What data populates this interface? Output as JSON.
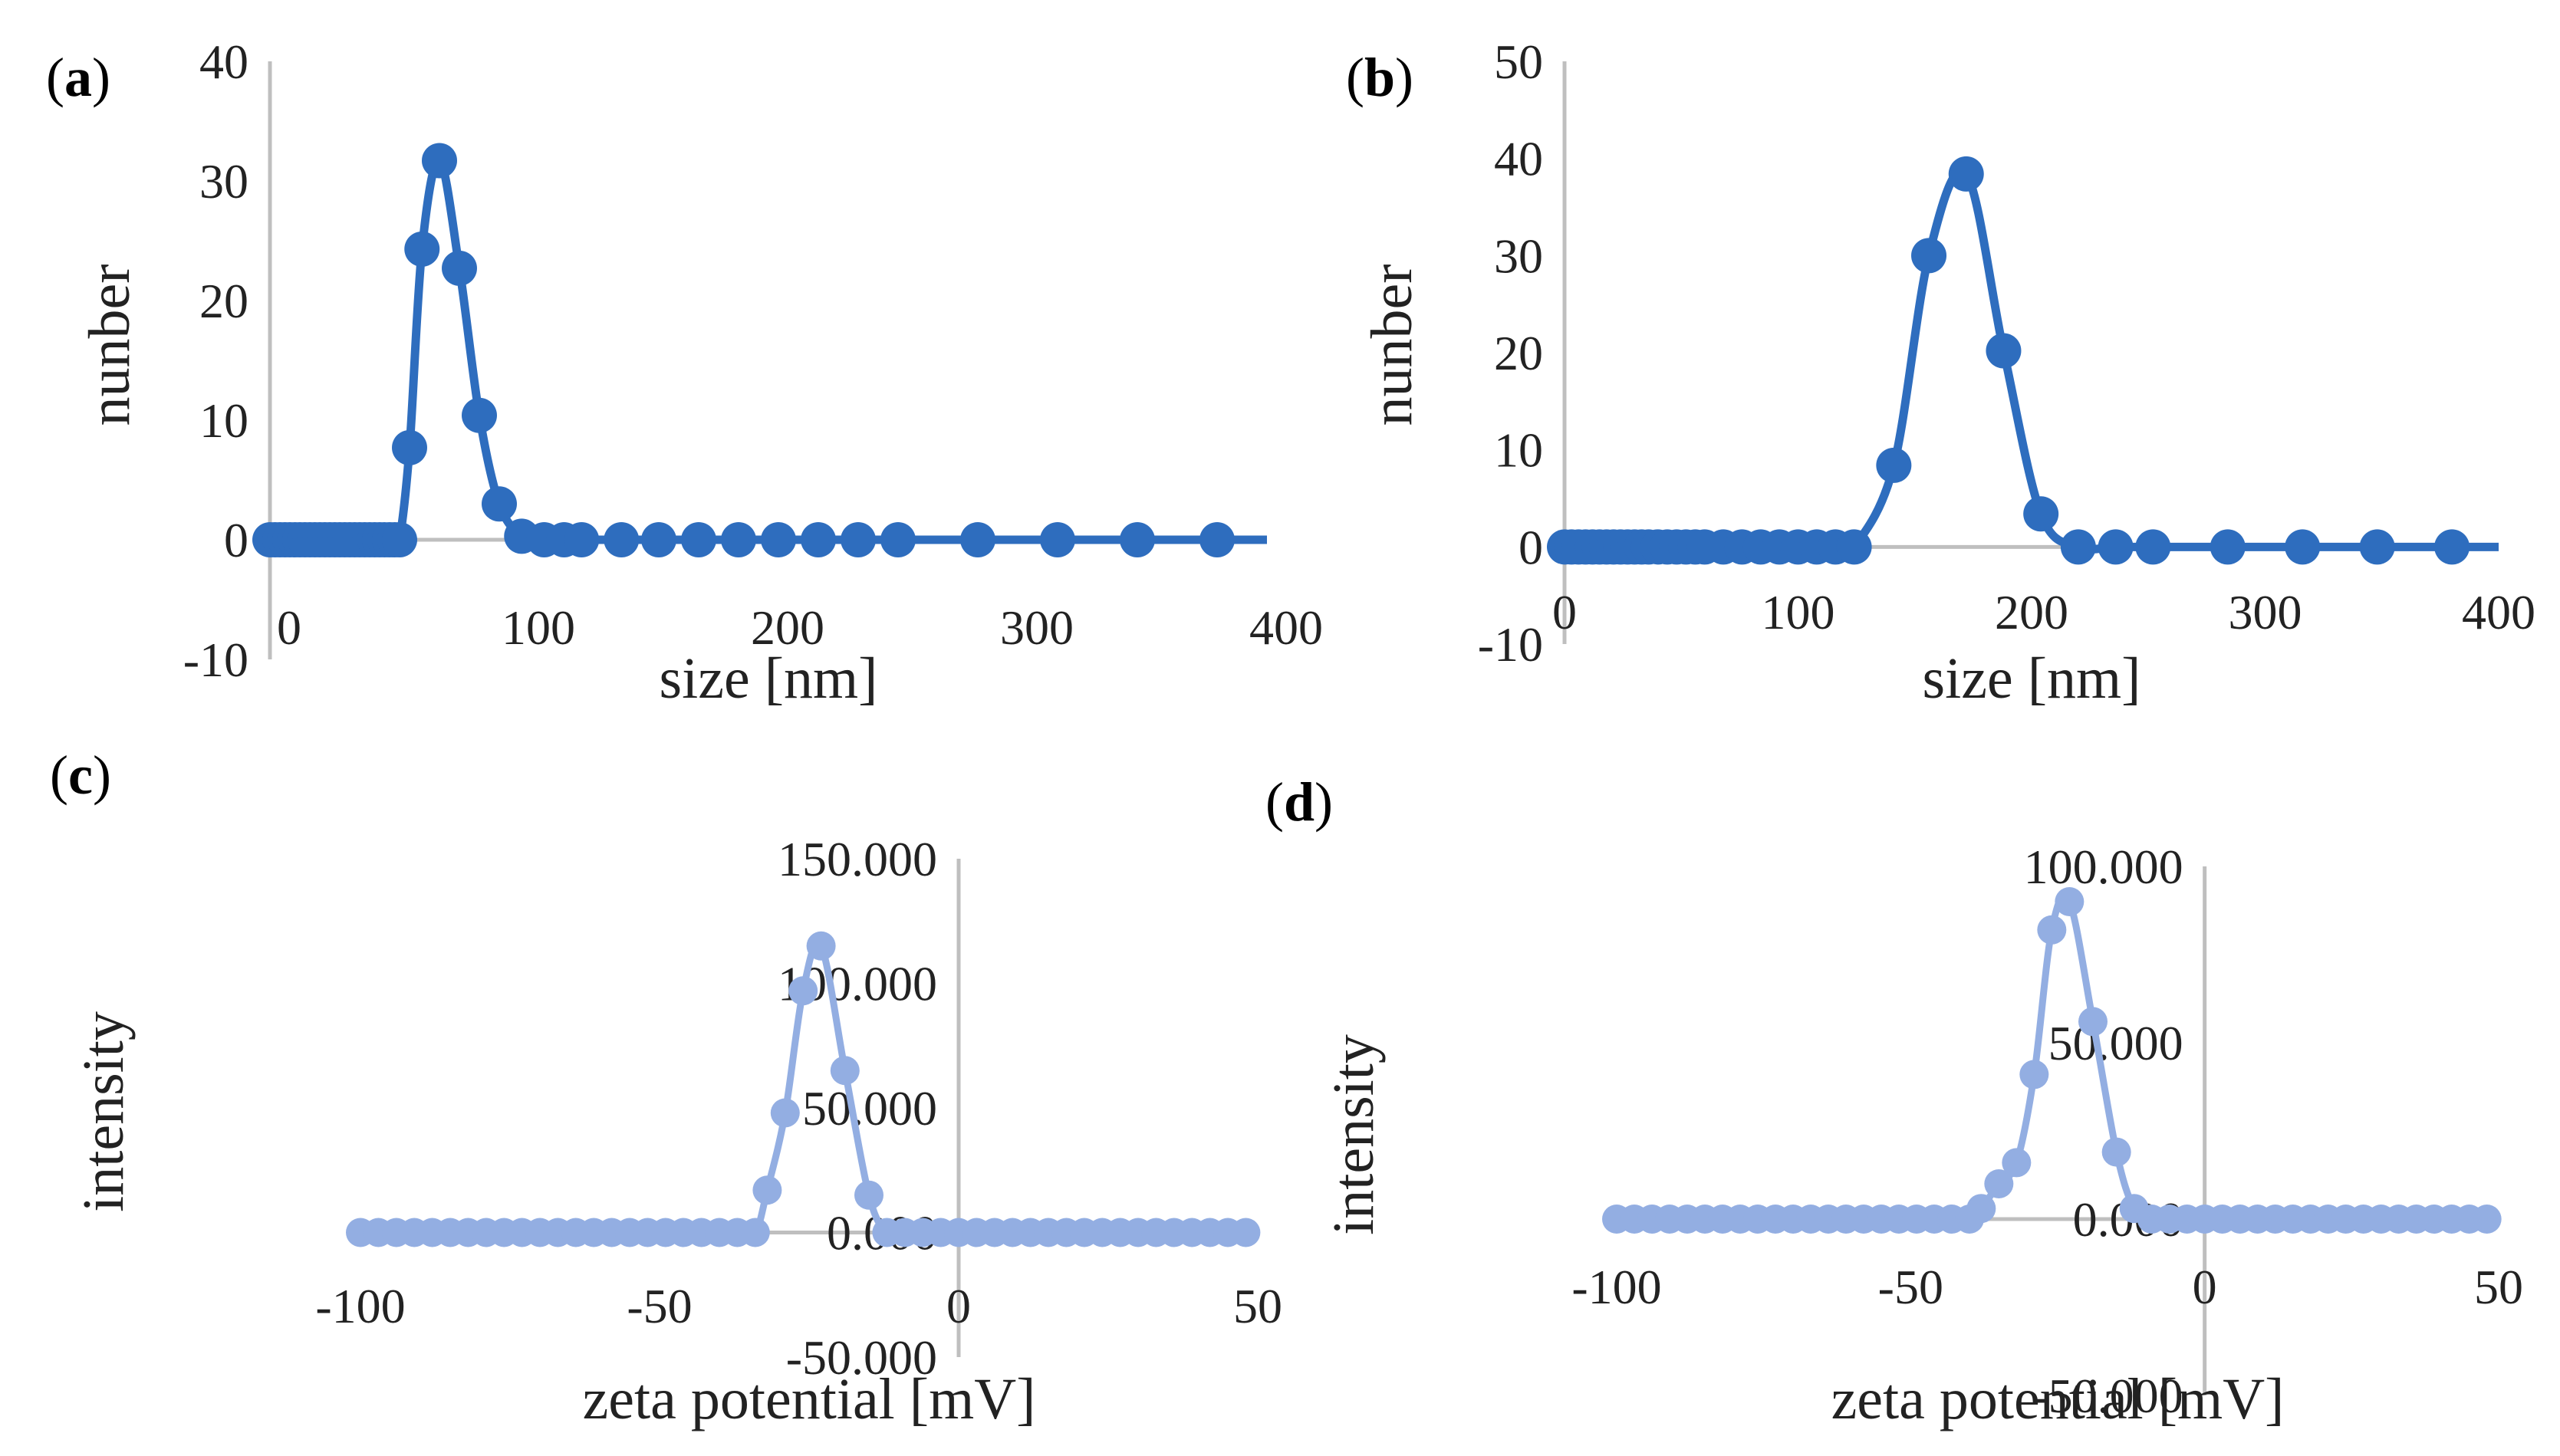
{
  "figure": {
    "colors": {
      "size_series": "#2e6dbe",
      "zeta_series": "#93aee2",
      "axis": "#bfbfbf",
      "text": "#222222"
    }
  },
  "chart_data": [
    {
      "id": "a",
      "label": "a",
      "type": "line",
      "color_key": "size_series",
      "xlabel": "size [nm]",
      "ylabel": "nunber",
      "xlim": [
        0,
        400
      ],
      "ylim": [
        -10,
        40
      ],
      "xticks": [
        0,
        100,
        200,
        300,
        400
      ],
      "yticks": [
        -10,
        0,
        10,
        20,
        30,
        40
      ],
      "ytick_labels": [
        "-10",
        "0",
        "10",
        "20",
        "30",
        "40"
      ],
      "series": [
        {
          "name": "number",
          "x": [
            0,
            2,
            4,
            6,
            8,
            10,
            12,
            14,
            16,
            18,
            20,
            22,
            24,
            26,
            28,
            30,
            32,
            34,
            36,
            38,
            40,
            42,
            44,
            46,
            48,
            50,
            52,
            56,
            61,
            68,
            76,
            84,
            92,
            101,
            110,
            118,
            125,
            141,
            156,
            172,
            188,
            204,
            220,
            236,
            252,
            284,
            316,
            348,
            380
          ],
          "y": [
            0,
            0,
            0,
            0,
            0,
            0,
            0,
            0,
            0,
            0,
            0,
            0,
            0,
            0,
            0,
            0,
            0,
            0,
            0,
            0,
            0,
            0,
            0,
            0,
            0,
            0,
            0,
            7.7,
            24.3,
            31.7,
            22.7,
            10.4,
            3,
            0.3,
            0,
            0,
            0,
            0,
            0,
            0,
            0,
            0,
            0,
            0,
            0,
            0,
            0,
            0,
            0
          ]
        }
      ]
    },
    {
      "id": "b",
      "label": "b",
      "type": "line",
      "color_key": "size_series",
      "xlabel": "size [nm]",
      "ylabel": "nunber",
      "xlim": [
        0,
        400
      ],
      "ylim": [
        -10,
        50
      ],
      "xticks": [
        0,
        100,
        200,
        300,
        400
      ],
      "yticks": [
        -10,
        0,
        10,
        20,
        30,
        40,
        50
      ],
      "ytick_labels": [
        "-10",
        "0",
        "10",
        "20",
        "30",
        "40",
        "50"
      ],
      "series": [
        {
          "name": "number",
          "x": [
            0,
            3,
            6,
            9,
            12,
            15,
            18,
            21,
            24,
            27,
            30,
            33,
            36,
            40,
            44,
            48,
            52,
            56,
            60,
            68,
            76,
            84,
            92,
            100,
            108,
            116,
            124,
            141,
            156,
            172,
            188,
            204,
            220,
            236,
            252,
            284,
            316,
            348,
            380
          ],
          "y": [
            0,
            0,
            0,
            0,
            0,
            0,
            0,
            0,
            0,
            0,
            0,
            0,
            0,
            0,
            0,
            0,
            0,
            0,
            0,
            0,
            0,
            0,
            0,
            0,
            0,
            0,
            0,
            8.4,
            30,
            38.4,
            20.2,
            3.4,
            0,
            0,
            0,
            0,
            0,
            0,
            0
          ]
        }
      ]
    },
    {
      "id": "c",
      "label": "c",
      "type": "line",
      "color_key": "zeta_series",
      "xlabel": "zeta potential [mV]",
      "ylabel": "intensity",
      "xlim": [
        -100,
        50
      ],
      "ylim": [
        -50,
        150
      ],
      "xticks": [
        -100,
        -50,
        0,
        50
      ],
      "yticks": [
        -50,
        0,
        50,
        100,
        150
      ],
      "ytick_labels": [
        "-50.000",
        "0.000",
        "50.000",
        "100.000",
        "150.000"
      ],
      "series": [
        {
          "name": "intensity",
          "x": [
            -100,
            -97,
            -94,
            -91,
            -88,
            -85,
            -82,
            -79,
            -76,
            -73,
            -70,
            -67,
            -64,
            -61,
            -58,
            -55,
            -52,
            -49,
            -46,
            -43,
            -40,
            -37,
            -34,
            -32,
            -29,
            -26,
            -23,
            -19,
            -15,
            -12,
            -9,
            -6,
            -3,
            0,
            3,
            6,
            9,
            12,
            15,
            18,
            21,
            24,
            27,
            30,
            33,
            36,
            39,
            42,
            45,
            48
          ],
          "y": [
            0,
            0,
            0,
            0,
            0,
            0,
            0,
            0,
            0,
            0,
            0,
            0,
            0,
            0,
            0,
            0,
            0,
            0,
            0,
            0,
            0,
            0,
            0,
            17,
            48,
            97,
            115,
            65,
            15,
            0,
            0,
            0,
            0,
            0,
            0,
            0,
            0,
            0,
            0,
            0,
            0,
            0,
            0,
            0,
            0,
            0,
            0,
            0,
            0,
            0
          ]
        }
      ]
    },
    {
      "id": "d",
      "label": "d",
      "type": "line",
      "color_key": "zeta_series",
      "xlabel": "zeta potential [mV]",
      "ylabel": "intensity",
      "xlim": [
        -100,
        50
      ],
      "ylim": [
        -50,
        100
      ],
      "xticks": [
        -100,
        -50,
        0,
        50
      ],
      "yticks": [
        -50,
        0,
        50,
        100
      ],
      "ytick_labels": [
        "-50.000",
        "0.000",
        "50.000",
        "100.000"
      ],
      "series": [
        {
          "name": "intensity",
          "x": [
            -100,
            -97,
            -94,
            -91,
            -88,
            -85,
            -82,
            -79,
            -76,
            -73,
            -70,
            -67,
            -64,
            -61,
            -58,
            -55,
            -52,
            -49,
            -46,
            -43,
            -40,
            -38,
            -35,
            -32,
            -29,
            -26,
            -23,
            -19,
            -15,
            -12,
            -9,
            -6,
            -3,
            0,
            3,
            6,
            9,
            12,
            15,
            18,
            21,
            24,
            27,
            30,
            33,
            36,
            39,
            42,
            45,
            48
          ],
          "y": [
            0,
            0,
            0,
            0,
            0,
            0,
            0,
            0,
            0,
            0,
            0,
            0,
            0,
            0,
            0,
            0,
            0,
            0,
            0,
            0,
            0,
            3,
            10,
            16,
            41,
            82,
            90,
            56,
            19,
            3,
            0,
            0,
            0,
            0,
            0,
            0,
            0,
            0,
            0,
            0,
            0,
            0,
            0,
            0,
            0,
            0,
            0,
            0,
            0,
            0
          ]
        }
      ]
    }
  ]
}
